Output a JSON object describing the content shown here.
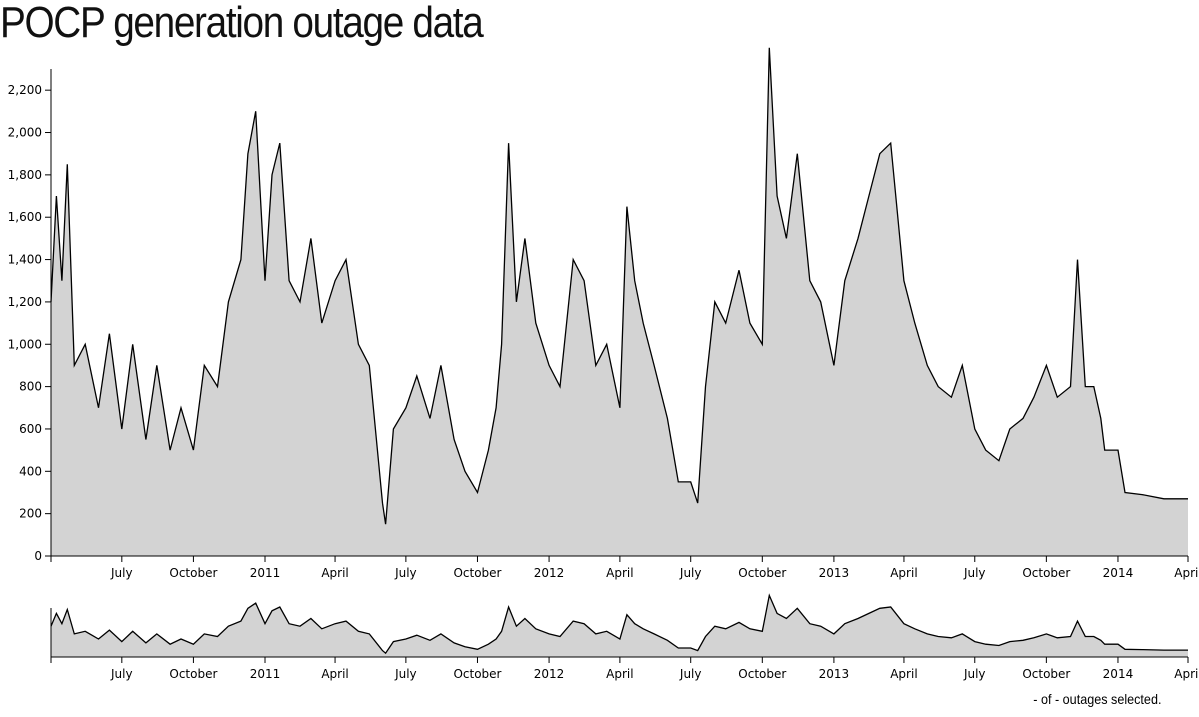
{
  "title": "POCP generation outage data",
  "footer": {
    "selected_count": "-",
    "of_text": "of",
    "total_count": "-",
    "suffix": "outages selected."
  },
  "chart_data": [
    {
      "type": "area",
      "role": "main",
      "xlim": [
        "2010-04-01",
        "2014-04-01"
      ],
      "ylim": [
        0,
        2300
      ],
      "y_ticks": [
        0,
        200,
        400,
        600,
        800,
        1000,
        1200,
        1400,
        1600,
        1800,
        2000,
        2200
      ],
      "y_tick_labels": [
        "0",
        "200",
        "400",
        "600",
        "800",
        "1,000",
        "1,200",
        "1,400",
        "1,600",
        "1,800",
        "2,000",
        "2,200"
      ],
      "x_tick_labels": [
        "July",
        "October",
        "2011",
        "April",
        "July",
        "October",
        "2012",
        "April",
        "July",
        "October",
        "2013",
        "April",
        "July",
        "October",
        "2014",
        "April"
      ],
      "x_tick_dates": [
        "2010-07-01",
        "2010-10-01",
        "2011-01-01",
        "2011-04-01",
        "2011-07-01",
        "2011-10-01",
        "2012-01-01",
        "2012-04-01",
        "2012-07-01",
        "2012-10-01",
        "2013-01-01",
        "2013-04-01",
        "2013-07-01",
        "2013-10-01",
        "2014-01-01",
        "2014-04-01"
      ],
      "fill": "#d3d3d3",
      "stroke": "#000000",
      "points": [
        [
          "2010-04-01",
          1200
        ],
        [
          "2010-04-08",
          1700
        ],
        [
          "2010-04-15",
          1300
        ],
        [
          "2010-04-22",
          1850
        ],
        [
          "2010-05-01",
          900
        ],
        [
          "2010-05-15",
          1000
        ],
        [
          "2010-06-01",
          700
        ],
        [
          "2010-06-15",
          1050
        ],
        [
          "2010-07-01",
          600
        ],
        [
          "2010-07-15",
          1000
        ],
        [
          "2010-08-01",
          550
        ],
        [
          "2010-08-15",
          900
        ],
        [
          "2010-09-01",
          500
        ],
        [
          "2010-09-15",
          700
        ],
        [
          "2010-10-01",
          500
        ],
        [
          "2010-10-15",
          900
        ],
        [
          "2010-11-01",
          800
        ],
        [
          "2010-11-15",
          1200
        ],
        [
          "2010-12-01",
          1400
        ],
        [
          "2010-12-10",
          1900
        ],
        [
          "2010-12-20",
          2100
        ],
        [
          "2011-01-01",
          1300
        ],
        [
          "2011-01-10",
          1800
        ],
        [
          "2011-01-20",
          1950
        ],
        [
          "2011-02-01",
          1300
        ],
        [
          "2011-02-15",
          1200
        ],
        [
          "2011-03-01",
          1500
        ],
        [
          "2011-03-15",
          1100
        ],
        [
          "2011-04-01",
          1300
        ],
        [
          "2011-04-15",
          1400
        ],
        [
          "2011-05-01",
          1000
        ],
        [
          "2011-05-15",
          900
        ],
        [
          "2011-06-01",
          250
        ],
        [
          "2011-06-05",
          150
        ],
        [
          "2011-06-15",
          600
        ],
        [
          "2011-07-01",
          700
        ],
        [
          "2011-07-15",
          850
        ],
        [
          "2011-08-01",
          650
        ],
        [
          "2011-08-15",
          900
        ],
        [
          "2011-09-01",
          550
        ],
        [
          "2011-09-15",
          400
        ],
        [
          "2011-10-01",
          300
        ],
        [
          "2011-10-15",
          500
        ],
        [
          "2011-10-25",
          700
        ],
        [
          "2011-11-01",
          1000
        ],
        [
          "2011-11-10",
          1950
        ],
        [
          "2011-11-20",
          1200
        ],
        [
          "2011-12-01",
          1500
        ],
        [
          "2011-12-15",
          1100
        ],
        [
          "2012-01-01",
          900
        ],
        [
          "2012-01-15",
          800
        ],
        [
          "2012-02-01",
          1400
        ],
        [
          "2012-02-15",
          1300
        ],
        [
          "2012-03-01",
          900
        ],
        [
          "2012-03-15",
          1000
        ],
        [
          "2012-04-01",
          700
        ],
        [
          "2012-04-10",
          1650
        ],
        [
          "2012-04-20",
          1300
        ],
        [
          "2012-05-01",
          1100
        ],
        [
          "2012-05-15",
          900
        ],
        [
          "2012-06-01",
          650
        ],
        [
          "2012-06-15",
          350
        ],
        [
          "2012-07-01",
          350
        ],
        [
          "2012-07-10",
          250
        ],
        [
          "2012-07-20",
          800
        ],
        [
          "2012-08-01",
          1200
        ],
        [
          "2012-08-15",
          1100
        ],
        [
          "2012-09-01",
          1350
        ],
        [
          "2012-09-15",
          1100
        ],
        [
          "2012-10-01",
          1000
        ],
        [
          "2012-10-10",
          2400
        ],
        [
          "2012-10-20",
          1700
        ],
        [
          "2012-11-01",
          1500
        ],
        [
          "2012-11-15",
          1900
        ],
        [
          "2012-12-01",
          1300
        ],
        [
          "2012-12-15",
          1200
        ],
        [
          "2013-01-01",
          900
        ],
        [
          "2013-01-15",
          1300
        ],
        [
          "2013-02-01",
          1500
        ],
        [
          "2013-02-15",
          1700
        ],
        [
          "2013-03-01",
          1900
        ],
        [
          "2013-03-15",
          1950
        ],
        [
          "2013-04-01",
          1300
        ],
        [
          "2013-04-15",
          1100
        ],
        [
          "2013-05-01",
          900
        ],
        [
          "2013-05-15",
          800
        ],
        [
          "2013-06-01",
          750
        ],
        [
          "2013-06-15",
          900
        ],
        [
          "2013-07-01",
          600
        ],
        [
          "2013-07-15",
          500
        ],
        [
          "2013-08-01",
          450
        ],
        [
          "2013-08-15",
          600
        ],
        [
          "2013-09-01",
          650
        ],
        [
          "2013-09-15",
          750
        ],
        [
          "2013-10-01",
          900
        ],
        [
          "2013-10-15",
          750
        ],
        [
          "2013-11-01",
          800
        ],
        [
          "2013-11-10",
          1400
        ],
        [
          "2013-11-20",
          800
        ],
        [
          "2013-12-01",
          800
        ],
        [
          "2013-12-10",
          650
        ],
        [
          "2013-12-15",
          500
        ],
        [
          "2014-01-01",
          500
        ],
        [
          "2014-01-10",
          300
        ],
        [
          "2014-02-01",
          290
        ],
        [
          "2014-03-01",
          270
        ],
        [
          "2014-04-01",
          270
        ]
      ]
    },
    {
      "type": "area",
      "role": "brush-overview",
      "xlim": [
        "2010-04-01",
        "2014-04-01"
      ],
      "ylim": [
        0,
        2300
      ],
      "x_tick_labels": [
        "July",
        "October",
        "2011",
        "April",
        "July",
        "October",
        "2012",
        "April",
        "July",
        "October",
        "2013",
        "April",
        "July",
        "October",
        "2014",
        "April"
      ],
      "x_tick_dates": [
        "2010-07-01",
        "2010-10-01",
        "2011-01-01",
        "2011-04-01",
        "2011-07-01",
        "2011-10-01",
        "2012-01-01",
        "2012-04-01",
        "2012-07-01",
        "2012-10-01",
        "2013-01-01",
        "2013-04-01",
        "2013-07-01",
        "2013-10-01",
        "2014-01-01",
        "2014-04-01"
      ],
      "fill": "#d3d3d3",
      "stroke": "#000000"
    }
  ]
}
